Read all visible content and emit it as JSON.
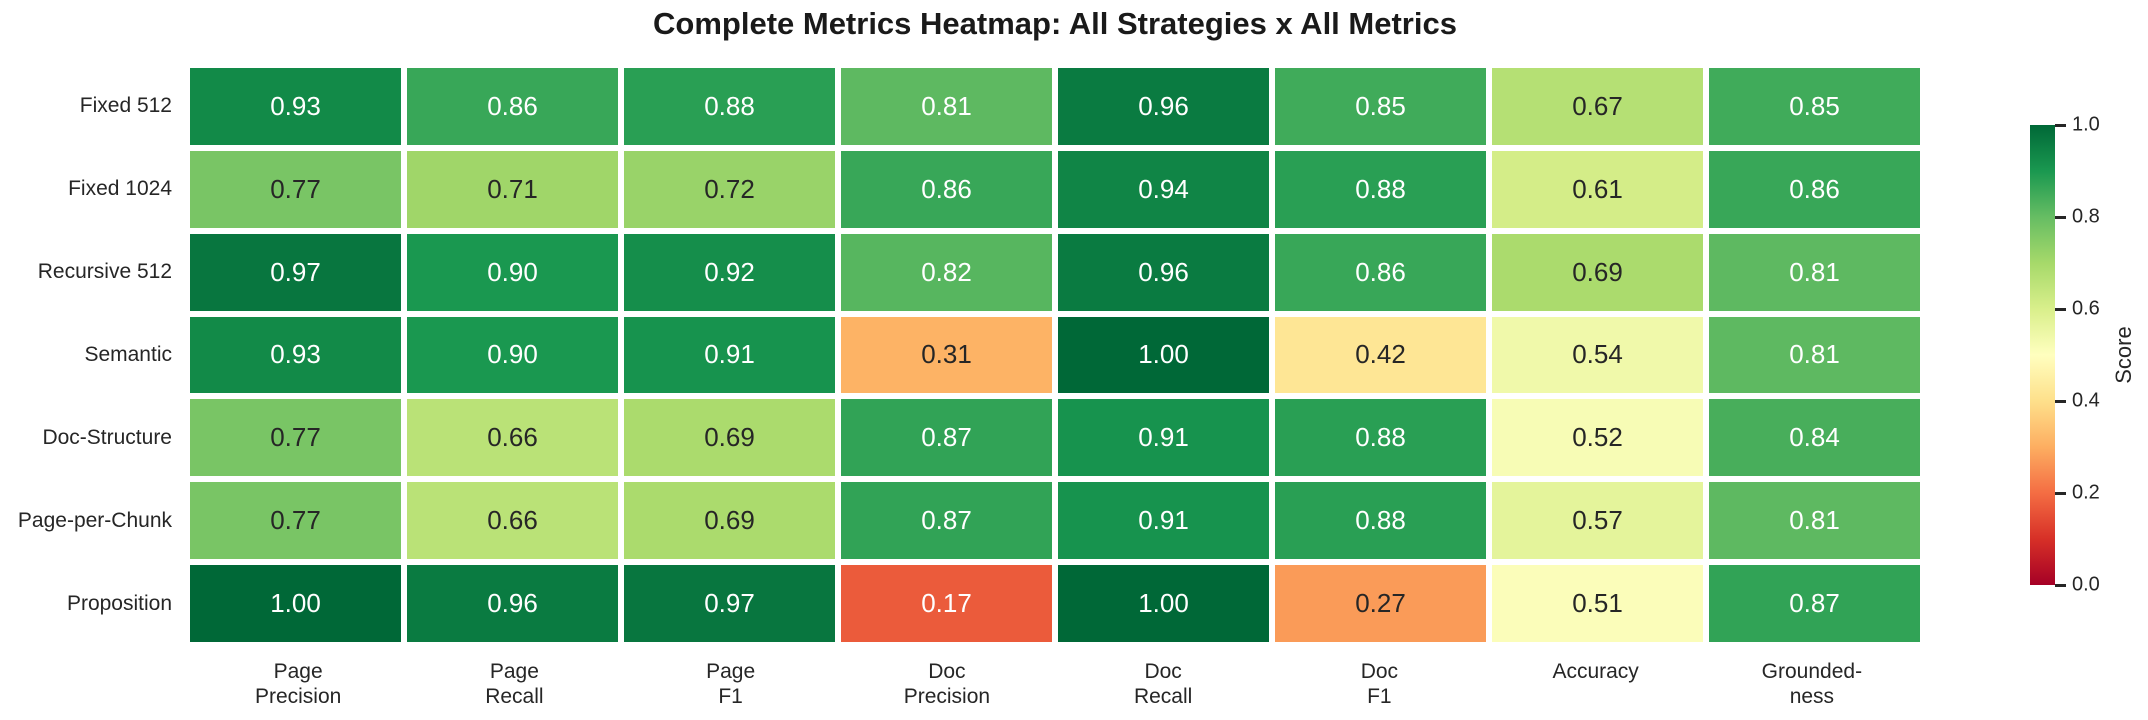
{
  "chart_data": {
    "type": "heatmap",
    "title": "Complete Metrics Heatmap: All Strategies x All Metrics",
    "rows": [
      "Fixed 512",
      "Fixed 1024",
      "Recursive 512",
      "Semantic",
      "Doc-Structure",
      "Page-per-Chunk",
      "Proposition"
    ],
    "columns": [
      "Page\nPrecision",
      "Page\nRecall",
      "Page\nF1",
      "Doc\nPrecision",
      "Doc\nRecall",
      "Doc\nF1",
      "Accuracy",
      "Grounded-\nness"
    ],
    "values": [
      [
        0.93,
        0.86,
        0.88,
        0.81,
        0.96,
        0.85,
        0.67,
        0.85
      ],
      [
        0.77,
        0.71,
        0.72,
        0.86,
        0.94,
        0.88,
        0.61,
        0.86
      ],
      [
        0.97,
        0.9,
        0.92,
        0.82,
        0.96,
        0.86,
        0.69,
        0.81
      ],
      [
        0.93,
        0.9,
        0.91,
        0.31,
        1.0,
        0.42,
        0.54,
        0.81
      ],
      [
        0.77,
        0.66,
        0.69,
        0.87,
        0.91,
        0.88,
        0.52,
        0.84
      ],
      [
        0.77,
        0.66,
        0.69,
        0.87,
        0.91,
        0.88,
        0.57,
        0.81
      ],
      [
        1.0,
        0.96,
        0.97,
        0.17,
        1.0,
        0.27,
        0.51,
        0.87
      ]
    ],
    "value_decimals": 2,
    "vmin": 0.0,
    "vmax": 1.0,
    "grid": false,
    "cell_gap_color": "#ffffff",
    "colormap": "RdYlGn",
    "colormap_stops": [
      "#a50026",
      "#d73027",
      "#f46d43",
      "#fdae61",
      "#fee08b",
      "#ffffbf",
      "#d9ef8b",
      "#a6d96a",
      "#66bd63",
      "#1a9850",
      "#006837"
    ],
    "cell_text_colors": {
      "on_dark": "#ffffff",
      "on_light": "#262626"
    },
    "colorbar": {
      "label": "Score",
      "position": "right",
      "tick_labels": [
        "1.0",
        "0.8",
        "0.6",
        "0.4",
        "0.2",
        "0.0"
      ],
      "tick_values": [
        1.0,
        0.8,
        0.6,
        0.4,
        0.2,
        0.0
      ]
    }
  }
}
